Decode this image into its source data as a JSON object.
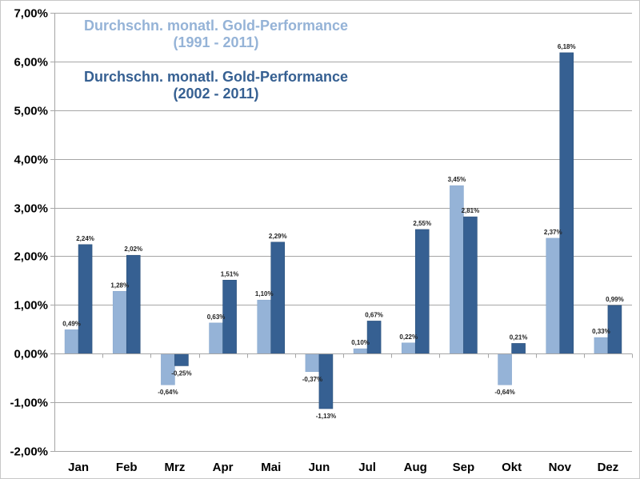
{
  "chart_data": {
    "type": "bar",
    "title": "",
    "xlabel": "",
    "ylabel": "",
    "ylim": [
      -2,
      7
    ],
    "ytick_step": 1,
    "ytick_labels": [
      "-2,00%",
      "-1,00%",
      "0,00%",
      "1,00%",
      "2,00%",
      "3,00%",
      "4,00%",
      "5,00%",
      "6,00%",
      "7,00%"
    ],
    "grid": true,
    "legend_placement": "top-left",
    "categories": [
      "Jan",
      "Feb",
      "Mrz",
      "Apr",
      "Mai",
      "Jun",
      "Jul",
      "Aug",
      "Sep",
      "Okt",
      "Nov",
      "Dez"
    ],
    "series": [
      {
        "name": "Durchschn. monatl. Gold-Performance (1991 - 2011)",
        "legend_line1": "Durchschn. monatl. Gold-Performance",
        "legend_line2": "(1991 - 2011)",
        "color": "#95b3d7",
        "values": [
          0.49,
          1.28,
          -0.64,
          0.63,
          1.1,
          -0.37,
          0.1,
          0.22,
          3.45,
          -0.64,
          2.37,
          0.33
        ],
        "labels": [
          "0,49%",
          "1,28%",
          "-0,64%",
          "0,63%",
          "1,10%",
          "-0,37%",
          "0,10%",
          "0,22%",
          "3,45%",
          "-0,64%",
          "2,37%",
          "0,33%"
        ]
      },
      {
        "name": "Durchschn. monatl. Gold-Performance (2002 - 2011)",
        "legend_line1": "Durchschn. monatl. Gold-Performance",
        "legend_line2": "(2002 - 2011)",
        "color": "#366092",
        "values": [
          2.24,
          2.02,
          -0.25,
          1.51,
          2.29,
          -1.13,
          0.67,
          2.55,
          2.81,
          0.21,
          6.18,
          0.99
        ],
        "labels": [
          "2,24%",
          "2,02%",
          "-0,25%",
          "1,51%",
          "2,29%",
          "-1,13%",
          "0,67%",
          "2,55%",
          "2,81%",
          "0,21%",
          "6,18%",
          "0,99%"
        ]
      }
    ]
  }
}
